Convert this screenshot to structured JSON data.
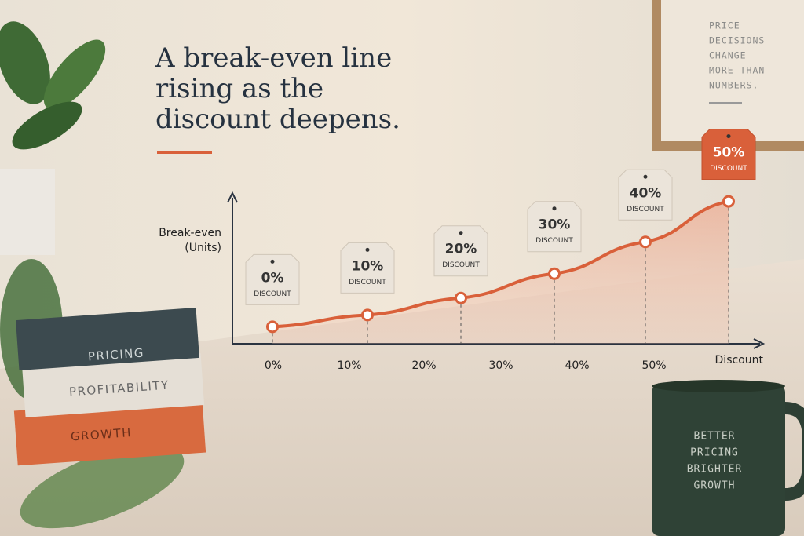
{
  "title": [
    "A break-even line",
    "rising as the",
    "discount deepens."
  ],
  "sidenote": [
    "PRICE",
    "DECISIONS",
    "CHANGE",
    "MORE THAN",
    "NUMBERS."
  ],
  "books": [
    "PRICING",
    "PROFITABILITY",
    "GROWTH"
  ],
  "mug": [
    "BETTER",
    "PRICING",
    "BRIGHTER",
    "GROWTH"
  ],
  "chart_data": {
    "type": "line",
    "y_label": [
      "Break-even",
      "(Units)"
    ],
    "x_label": "Discount",
    "categories": [
      "0%",
      "10%",
      "20%",
      "30%",
      "40%",
      "50%"
    ],
    "tag_caption": "DISCOUNT",
    "series": [
      {
        "color": "#d9603a",
        "values": [
          23,
          39,
          62,
          95,
          138,
          193
        ]
      }
    ],
    "ylim": [
      0,
      200
    ]
  }
}
